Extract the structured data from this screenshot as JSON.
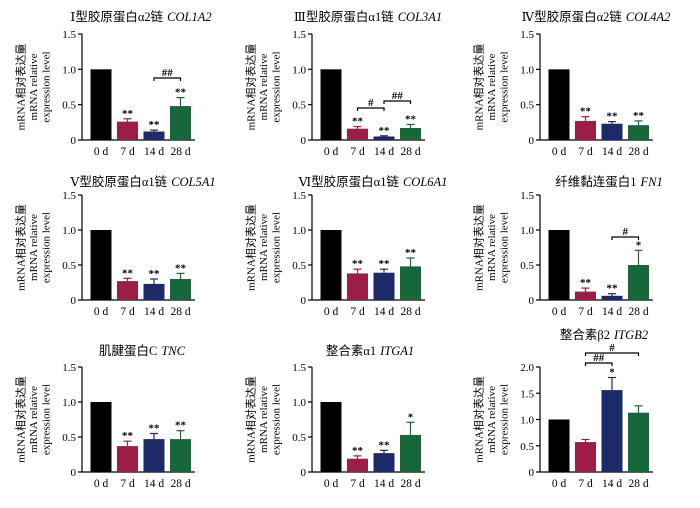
{
  "figure": {
    "bar_colors": [
      "#000000",
      "#9c1d45",
      "#1d2a68",
      "#16683a"
    ]
  },
  "chart_data": [
    {
      "type": "bar",
      "title_cn": "Ⅰ型胶原蛋白α2链",
      "title_gene": "COL1A2",
      "ylabel": [
        "mRNA相对表达量",
        "mRNA relative",
        "expression level"
      ],
      "categories": [
        "0 d",
        "7 d",
        "14 d",
        "28 d"
      ],
      "values": [
        1.0,
        0.26,
        0.12,
        0.48
      ],
      "errors": [
        0,
        0.04,
        0.02,
        0.12
      ],
      "significance": [
        "",
        "**",
        "**",
        "**"
      ],
      "brackets": [
        {
          "from": 2,
          "to": 3,
          "label": "##"
        }
      ],
      "yticks": [
        0,
        0.5,
        1.0,
        1.5
      ],
      "ytick_labels": [
        "0",
        "0.5",
        "1.0",
        "1.5"
      ],
      "ylim": [
        0,
        1.5
      ]
    },
    {
      "type": "bar",
      "title_cn": "Ⅲ型胶原蛋白α1链",
      "title_gene": "COL3A1",
      "ylabel": [
        "mRNA相对表达量",
        "mRNA relative",
        "expression level"
      ],
      "categories": [
        "0 d",
        "7 d",
        "14 d",
        "28 d"
      ],
      "values": [
        1.0,
        0.16,
        0.05,
        0.17
      ],
      "errors": [
        0,
        0.03,
        0.01,
        0.05
      ],
      "significance": [
        "",
        "**",
        "**",
        "**"
      ],
      "brackets": [
        {
          "from": 1,
          "to": 2,
          "label": "#"
        },
        {
          "from": 2,
          "to": 3,
          "label": "##"
        }
      ],
      "yticks": [
        0,
        0.5,
        1.0,
        1.5
      ],
      "ytick_labels": [
        "0",
        "0.5",
        "1.0",
        "1.5"
      ],
      "ylim": [
        0,
        1.5
      ]
    },
    {
      "type": "bar",
      "title_cn": "Ⅳ型胶原蛋白α2链",
      "title_gene": "COL4A2",
      "ylabel": [
        "mRNA相对表达量",
        "mRNA relative",
        "expression level"
      ],
      "categories": [
        "0 d",
        "7 d",
        "14 d",
        "28 d"
      ],
      "values": [
        1.0,
        0.27,
        0.23,
        0.21
      ],
      "errors": [
        0,
        0.06,
        0.03,
        0.06
      ],
      "significance": [
        "",
        "**",
        "**",
        "**"
      ],
      "brackets": [],
      "yticks": [
        0,
        0.5,
        1.0,
        1.5
      ],
      "ytick_labels": [
        "0",
        "0.5",
        "1.0",
        "1.5"
      ],
      "ylim": [
        0,
        1.5
      ]
    },
    {
      "type": "bar",
      "title_cn": "Ⅴ型胶原蛋白α1链",
      "title_gene": "COL5A1",
      "ylabel": [
        "mRNA相对表达量",
        "mRNA relative",
        "expression level"
      ],
      "categories": [
        "0 d",
        "7 d",
        "14 d",
        "28 d"
      ],
      "values": [
        1.0,
        0.27,
        0.23,
        0.3
      ],
      "errors": [
        0,
        0.04,
        0.07,
        0.08
      ],
      "significance": [
        "",
        "**",
        "**",
        "**"
      ],
      "brackets": [],
      "yticks": [
        0,
        0.5,
        1.0,
        1.5
      ],
      "ytick_labels": [
        "0",
        "0.5",
        "1.0",
        "1.5"
      ],
      "ylim": [
        0,
        1.5
      ]
    },
    {
      "type": "bar",
      "title_cn": "Ⅵ型胶原蛋白α1链",
      "title_gene": "COL6A1",
      "ylabel": [
        "mRNA相对表达量",
        "mRNA relative",
        "expression level"
      ],
      "categories": [
        "0 d",
        "7 d",
        "14 d",
        "28 d"
      ],
      "values": [
        1.0,
        0.38,
        0.39,
        0.48
      ],
      "errors": [
        0,
        0.06,
        0.05,
        0.12
      ],
      "significance": [
        "",
        "**",
        "**",
        "**"
      ],
      "brackets": [],
      "yticks": [
        0,
        0.5,
        1.0,
        1.5
      ],
      "ytick_labels": [
        "0",
        "0.5",
        "1.0",
        "1.5"
      ],
      "ylim": [
        0,
        1.5
      ]
    },
    {
      "type": "bar",
      "title_cn": "纤维黏连蛋白1",
      "title_gene": "FN1",
      "ylabel": [
        "mRNA相对表达量",
        "mRNA relative",
        "expression level"
      ],
      "categories": [
        "0 d",
        "7 d",
        "14 d",
        "28 d"
      ],
      "values": [
        1.0,
        0.12,
        0.06,
        0.5
      ],
      "errors": [
        0,
        0.05,
        0.03,
        0.21
      ],
      "significance": [
        "",
        "**",
        "**",
        "*"
      ],
      "brackets": [
        {
          "from": 2,
          "to": 3,
          "label": "#"
        }
      ],
      "yticks": [
        0,
        0.5,
        1.0,
        1.5
      ],
      "ytick_labels": [
        "0",
        "0.5",
        "1.0",
        "1.5"
      ],
      "ylim": [
        0,
        1.5
      ]
    },
    {
      "type": "bar",
      "title_cn": "肌腱蛋白C",
      "title_gene": "TNC",
      "ylabel": [
        "mRNA相对表达量",
        "mRNA relative",
        "expression level"
      ],
      "categories": [
        "0 d",
        "7 d",
        "14 d",
        "28 d"
      ],
      "values": [
        1.0,
        0.37,
        0.47,
        0.47
      ],
      "errors": [
        0,
        0.07,
        0.08,
        0.12
      ],
      "significance": [
        "",
        "**",
        "**",
        "**"
      ],
      "brackets": [],
      "yticks": [
        0,
        0.5,
        1.0,
        1.5
      ],
      "ytick_labels": [
        "0",
        "0.5",
        "1.0",
        "1.5"
      ],
      "ylim": [
        0,
        1.5
      ]
    },
    {
      "type": "bar",
      "title_cn": "整合素α1",
      "title_gene": "ITGA1",
      "ylabel": [
        "mRNA相对表达量",
        "mRNA relative",
        "expression level"
      ],
      "categories": [
        "0 d",
        "7 d",
        "14 d",
        "28 d"
      ],
      "values": [
        1.0,
        0.19,
        0.27,
        0.53
      ],
      "errors": [
        0,
        0.04,
        0.04,
        0.18
      ],
      "significance": [
        "",
        "**",
        "**",
        "*"
      ],
      "brackets": [],
      "yticks": [
        0,
        0.5,
        1.0,
        1.5
      ],
      "ytick_labels": [
        "0",
        "0.5",
        "1.0",
        "1.5"
      ],
      "ylim": [
        0,
        1.5
      ]
    },
    {
      "type": "bar",
      "title_cn": "整合素β2",
      "title_gene": "ITGB2",
      "ylabel": [
        "mRNA相对表达量",
        "mRNA relative",
        "expression level"
      ],
      "categories": [
        "0 d",
        "7 d",
        "14 d",
        "28 d"
      ],
      "values": [
        1.0,
        0.57,
        1.56,
        1.13
      ],
      "errors": [
        0,
        0.05,
        0.24,
        0.13
      ],
      "significance": [
        "",
        "",
        "*",
        ""
      ],
      "brackets": [
        {
          "from": 1,
          "to": 2,
          "label": "##"
        },
        {
          "from": 1,
          "to": 3,
          "label": "#"
        }
      ],
      "yticks": [
        0,
        0.5,
        1.0,
        1.5,
        2.0
      ],
      "ytick_labels": [
        "0",
        "0.5",
        "1.0",
        "1.5",
        "2.0"
      ],
      "ylim": [
        0,
        2.0
      ]
    }
  ]
}
